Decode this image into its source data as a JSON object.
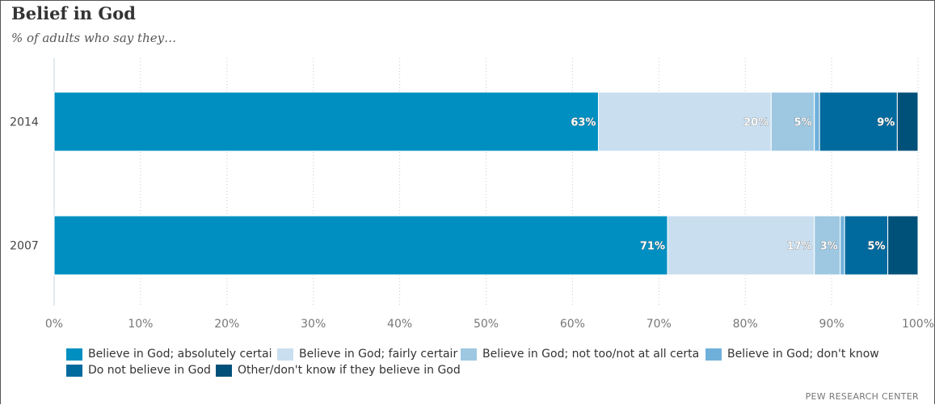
{
  "title": "Belief in God",
  "subtitle": "% of adults who say they…",
  "source": "PEW RESEARCH CENTER",
  "chart_data": {
    "type": "bar",
    "orientation": "horizontal",
    "stacked": true,
    "title": "Belief in God",
    "subtitle": "% of adults who say they…",
    "categories": [
      "2014",
      "2007"
    ],
    "xlim": [
      0,
      100
    ],
    "x_ticks": [
      "0%",
      "10%",
      "20%",
      "30%",
      "40%",
      "50%",
      "60%",
      "70%",
      "80%",
      "90%",
      "100%"
    ],
    "grid": "vertical dotted",
    "legend_position": "bottom",
    "series": [
      {
        "name": "Believe in God; absolutely certain",
        "legend_label": "Believe in God; absolutely certai",
        "color": "#008FC1",
        "values": [
          63,
          71
        ],
        "labels": [
          "63%",
          "71%"
        ]
      },
      {
        "name": "Believe in God; fairly certain",
        "legend_label": "Believe in God; fairly certair",
        "color": "#C9DFF0",
        "values": [
          20,
          17
        ],
        "labels": [
          "20%",
          "17%"
        ]
      },
      {
        "name": "Believe in God; not too/not at all certain",
        "legend_label": "Believe in God; not too/not at all certa",
        "color": "#9EC8E1",
        "values": [
          5,
          3
        ],
        "labels": [
          "5%",
          "3%"
        ]
      },
      {
        "name": "Believe in God; don't know",
        "legend_label": "Believe in God; don't know",
        "color": "#6FB0DA",
        "values": [
          0.6,
          0.5
        ],
        "labels": [
          "",
          ""
        ]
      },
      {
        "name": "Do not believe in God",
        "legend_label": "Do not believe in God",
        "color": "#006A9E",
        "values": [
          9,
          5
        ],
        "labels": [
          "9%",
          "5%"
        ]
      },
      {
        "name": "Other/don't know if they believe in God",
        "legend_label": "Other/don't know if they believe in God",
        "color": "#00517A",
        "values": [
          2.4,
          3.5
        ],
        "labels": [
          "",
          ""
        ]
      }
    ]
  }
}
